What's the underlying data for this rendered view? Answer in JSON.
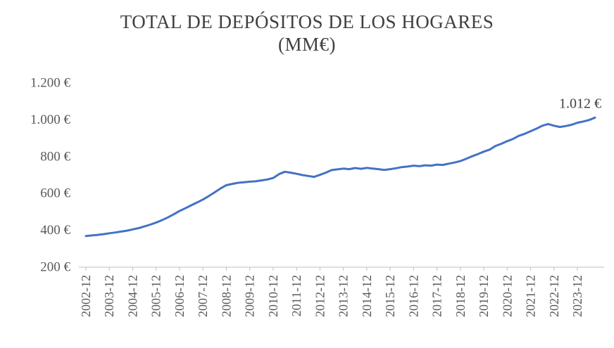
{
  "chart_data": {
    "type": "line",
    "title": "TOTAL DE DEPÓSITOS DE LOS HOGARES (MM€)",
    "title_lines": [
      "TOTAL DE DEPÓSITOS DE LOS HOGARES",
      "(MM€)"
    ],
    "series_name": "Total de depósitos de los hogares",
    "unit": "MM€",
    "grid": false,
    "legend": "none",
    "line_color": "#4472C4",
    "axis_color": "#BFBFBF",
    "label_color": "#595959",
    "title_color": "#404040",
    "ylim": [
      200,
      1200
    ],
    "y_ticks": [
      200,
      400,
      600,
      800,
      1000,
      1200
    ],
    "y_tick_labels": [
      "200 €",
      "400 €",
      "600 €",
      "800 €",
      "1.000 €",
      "1.200 €"
    ],
    "x_tick_labels": [
      "2002-12",
      "2003-12",
      "2004-12",
      "2005-12",
      "2006-12",
      "2007-12",
      "2008-12",
      "2009-12",
      "2010-12",
      "2011-12",
      "2012-12",
      "2013-12",
      "2014-12",
      "2015-12",
      "2016-12",
      "2017-12",
      "2018-12",
      "2019-12",
      "2020-12",
      "2021-12",
      "2022-12",
      "2023-12"
    ],
    "last_point_label": "1.012 €",
    "x": [
      "2002-12",
      "2003-03",
      "2003-06",
      "2003-09",
      "2003-12",
      "2004-03",
      "2004-06",
      "2004-09",
      "2004-12",
      "2005-03",
      "2005-06",
      "2005-09",
      "2005-12",
      "2006-03",
      "2006-06",
      "2006-09",
      "2006-12",
      "2007-03",
      "2007-06",
      "2007-09",
      "2007-12",
      "2008-03",
      "2008-06",
      "2008-09",
      "2008-12",
      "2009-03",
      "2009-06",
      "2009-09",
      "2009-12",
      "2010-03",
      "2010-06",
      "2010-09",
      "2010-12",
      "2011-03",
      "2011-06",
      "2011-09",
      "2011-12",
      "2012-03",
      "2012-06",
      "2012-09",
      "2012-12",
      "2013-03",
      "2013-06",
      "2013-09",
      "2013-12",
      "2014-03",
      "2014-06",
      "2014-09",
      "2014-12",
      "2015-03",
      "2015-06",
      "2015-09",
      "2015-12",
      "2016-03",
      "2016-06",
      "2016-09",
      "2016-12",
      "2017-03",
      "2017-06",
      "2017-09",
      "2017-12",
      "2018-03",
      "2018-06",
      "2018-09",
      "2018-12",
      "2019-03",
      "2019-06",
      "2019-09",
      "2019-12",
      "2020-03",
      "2020-06",
      "2020-09",
      "2020-12",
      "2021-03",
      "2021-06",
      "2021-09",
      "2021-12",
      "2022-03",
      "2022-06",
      "2022-09",
      "2022-12",
      "2023-03",
      "2023-06",
      "2023-09",
      "2023-12",
      "2024-03",
      "2024-06",
      "2024-09"
    ],
    "values": [
      369,
      372,
      375,
      379,
      384,
      388,
      393,
      398,
      405,
      412,
      421,
      431,
      442,
      455,
      470,
      487,
      505,
      520,
      536,
      551,
      567,
      586,
      606,
      627,
      645,
      652,
      658,
      661,
      664,
      666,
      671,
      676,
      684,
      705,
      718,
      713,
      707,
      700,
      695,
      690,
      701,
      713,
      727,
      731,
      735,
      732,
      738,
      734,
      739,
      735,
      732,
      728,
      732,
      737,
      743,
      746,
      751,
      748,
      753,
      751,
      757,
      755,
      762,
      768,
      776,
      788,
      802,
      814,
      827,
      838,
      858,
      870,
      884,
      896,
      913,
      924,
      938,
      952,
      968,
      977,
      968,
      961,
      966,
      973,
      984,
      991,
      999,
      1012
    ]
  }
}
